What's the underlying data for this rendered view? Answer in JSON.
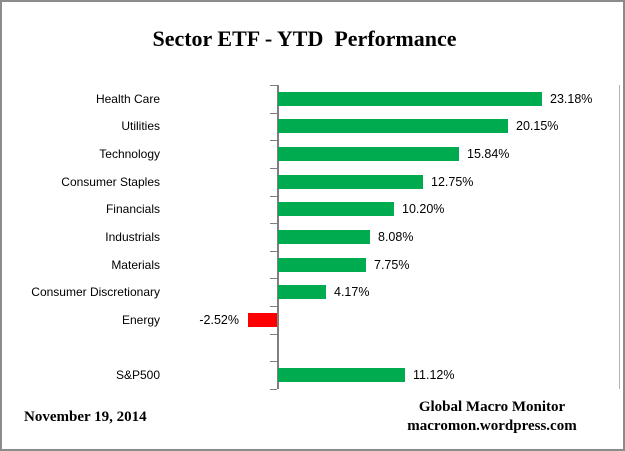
{
  "title": "Sector ETF - YTD  Performance",
  "footer": {
    "date": "November 19, 2014",
    "credit_line1": "Global Macro Monitor",
    "credit_line2": "macromon.wordpress.com"
  },
  "colors": {
    "positive_bar": "#00AB4F",
    "negative_bar": "#FF0000",
    "axis": "#7f7f7f",
    "gridline": "#b3b3b3"
  },
  "chart_data": {
    "type": "bar",
    "orientation": "horizontal",
    "title": "Sector ETF - YTD  Performance",
    "categories": [
      "Health Care",
      "Utilities",
      "Technology",
      "Consumer Staples",
      "Financials",
      "Industrials",
      "Materials",
      "Consumer Discretionary",
      "Energy",
      "",
      "S&P500"
    ],
    "values": [
      23.18,
      20.15,
      15.84,
      12.75,
      10.2,
      8.08,
      7.75,
      4.17,
      -2.52,
      null,
      11.12
    ],
    "value_labels": [
      "23.18%",
      "20.15%",
      "15.84%",
      "12.75%",
      "10.20%",
      "8.08%",
      "7.75%",
      "4.17%",
      "-2.52%",
      "",
      "11.12%"
    ],
    "xlabel": "",
    "ylabel": "",
    "axis_range": [
      -10,
      30
    ],
    "grid": false,
    "legend": false,
    "bar_colors_rule": "positive=green, negative=red"
  }
}
